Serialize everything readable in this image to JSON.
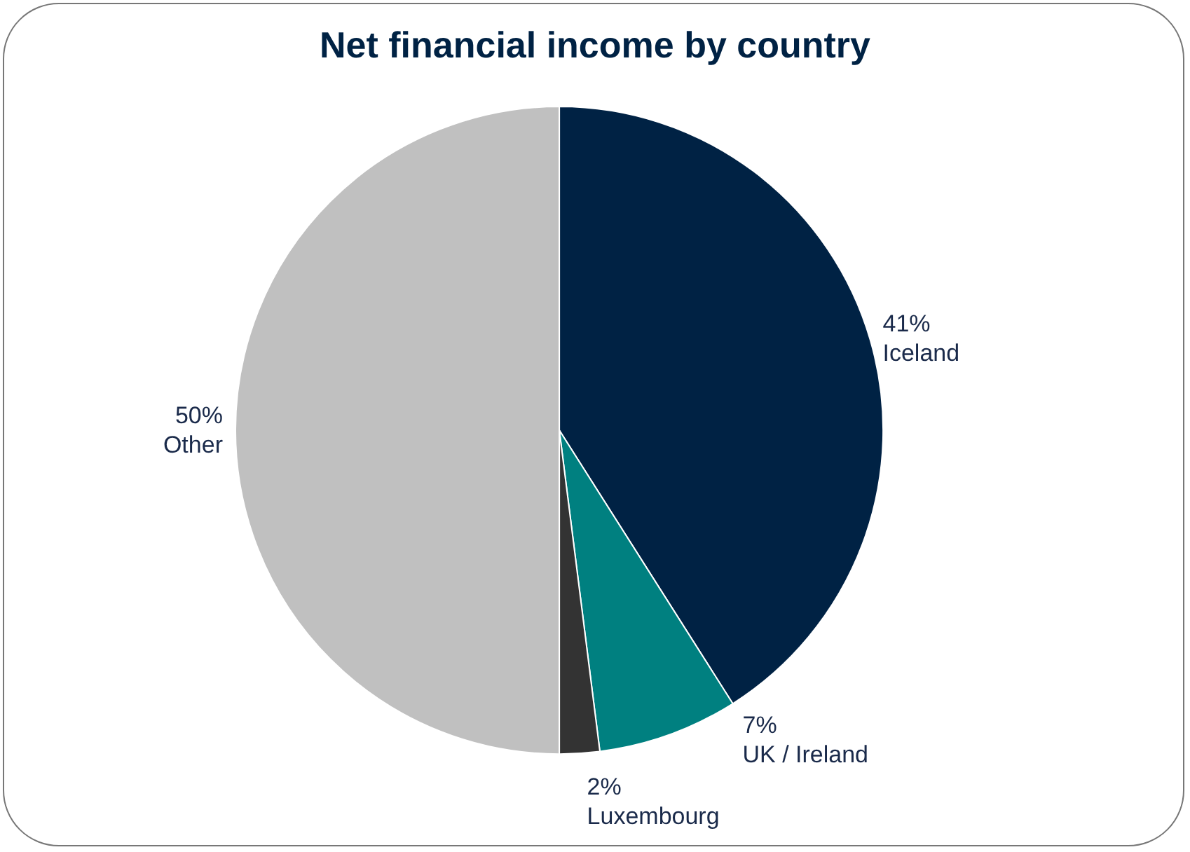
{
  "chart_data": {
    "type": "pie",
    "title": "Net financial income by country",
    "categories": [
      "Iceland",
      "UK / Ireland",
      "Luxembourg",
      "Other"
    ],
    "values": [
      41,
      7,
      2,
      50
    ],
    "colors": [
      "#002244",
      "#008080",
      "#333333",
      "#c0c0c0"
    ],
    "value_labels": [
      "41%",
      "7%",
      "2%",
      "50%"
    ],
    "legend": false
  }
}
